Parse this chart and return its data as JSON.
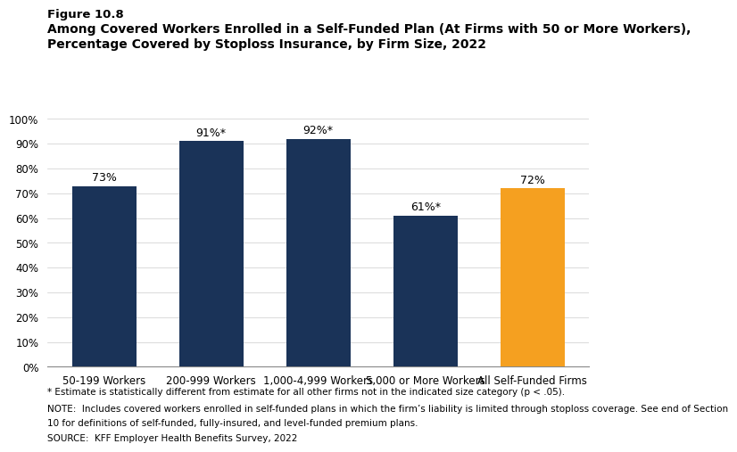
{
  "categories": [
    "50-199 Workers",
    "200-999 Workers",
    "1,000-4,999 Workers",
    "5,000 or More Workers",
    "All Self-Funded Firms"
  ],
  "values": [
    73,
    91,
    92,
    61,
    72
  ],
  "labels": [
    "73%",
    "91%*",
    "92%*",
    "61%*",
    "72%"
  ],
  "bar_colors": [
    "#1a3358",
    "#1a3358",
    "#1a3358",
    "#1a3358",
    "#f5a020"
  ],
  "title_line1": "Figure 10.8",
  "title_line2": "Among Covered Workers Enrolled in a Self-Funded Plan (At Firms with 50 or More Workers),",
  "title_line3": "Percentage Covered by Stoploss Insurance, by Firm Size, 2022",
  "ylim": [
    0,
    100
  ],
  "yticks": [
    0,
    10,
    20,
    30,
    40,
    50,
    60,
    70,
    80,
    90,
    100
  ],
  "ytick_labels": [
    "0%",
    "10%",
    "20%",
    "30%",
    "40%",
    "50%",
    "60%",
    "70%",
    "80%",
    "90%",
    "100%"
  ],
  "footnote1": "* Estimate is statistically different from estimate for all other firms not in the indicated size category (p < .05).",
  "footnote2": "NOTE:  Includes covered workers enrolled in self-funded plans in which the firm’s liability is limited through stoploss coverage. See end of Section",
  "footnote3": "10 for definitions of self-funded, fully-insured, and level-funded premium plans.",
  "footnote4": "SOURCE:  KFF Employer Health Benefits Survey, 2022",
  "background_color": "#ffffff",
  "label_fontsize": 9,
  "tick_fontsize": 8.5,
  "title_fontsize1": 9.5,
  "title_fontsize2": 10,
  "footnote_fontsize": 7.5
}
